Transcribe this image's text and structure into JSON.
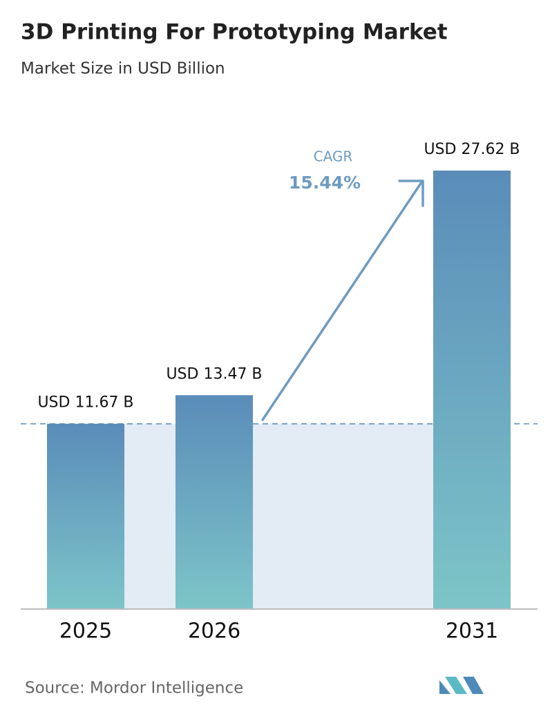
{
  "chart_data": {
    "type": "bar",
    "title": "3D Printing For Prototyping Market",
    "subtitle": "Market Size in USD Billion",
    "categories": [
      "2025",
      "2026",
      "2031"
    ],
    "values": [
      11.67,
      13.47,
      27.62
    ],
    "value_labels": [
      "USD 11.67 B",
      "USD 13.47 B",
      "USD 27.62 B"
    ],
    "colors": [
      "#5a8cb9",
      "#7dc5c8"
    ],
    "annotation": {
      "label": "CAGR",
      "text": "15.44%"
    },
    "source": "Source:  Mordor Intelligence"
  }
}
